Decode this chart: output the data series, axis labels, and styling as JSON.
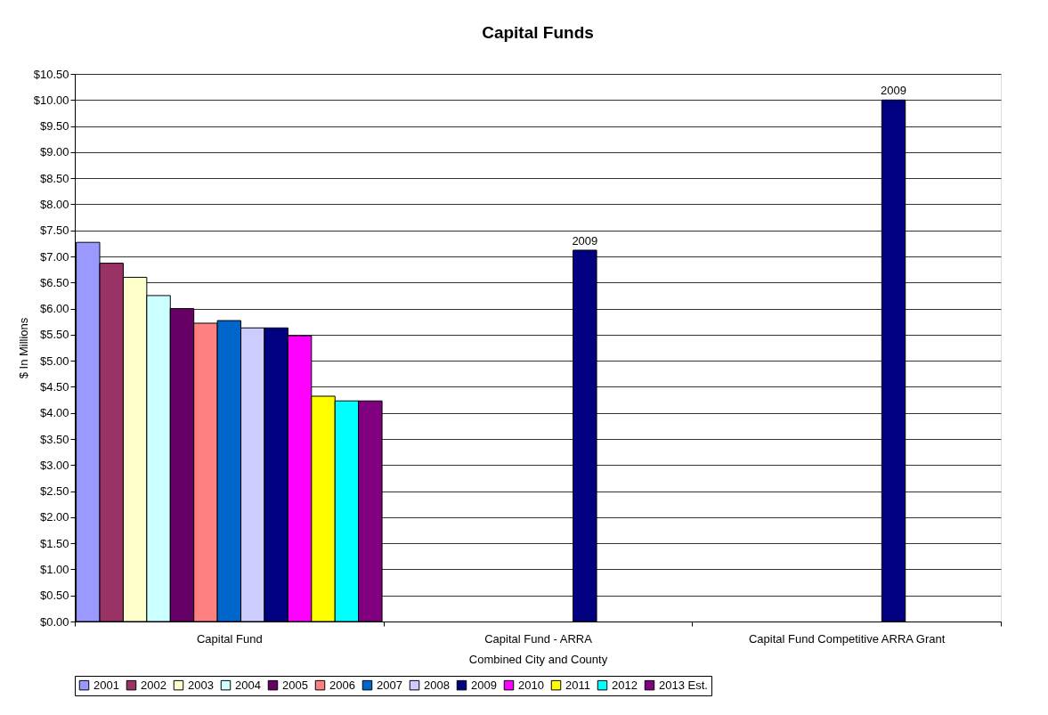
{
  "chart_data": {
    "type": "bar",
    "title": "Capital Funds",
    "xlabel": "Combined City and County",
    "ylabel": "$ In Millions",
    "categories": [
      "Capital Fund",
      "Capital Fund - ARRA",
      "Capital Fund Competitive ARRA Grant"
    ],
    "series": [
      {
        "name": "2001",
        "color": "#9999ff",
        "values": [
          7.27,
          null,
          null
        ]
      },
      {
        "name": "2002",
        "color": "#993366",
        "values": [
          6.87,
          null,
          null
        ]
      },
      {
        "name": "2003",
        "color": "#ffffcc",
        "values": [
          6.6,
          null,
          null
        ]
      },
      {
        "name": "2004",
        "color": "#ccffff",
        "values": [
          6.25,
          null,
          null
        ]
      },
      {
        "name": "2005",
        "color": "#660066",
        "values": [
          6.0,
          null,
          null
        ]
      },
      {
        "name": "2006",
        "color": "#ff8080",
        "values": [
          5.72,
          null,
          null
        ]
      },
      {
        "name": "2007",
        "color": "#0066cc",
        "values": [
          5.77,
          null,
          null
        ]
      },
      {
        "name": "2008",
        "color": "#ccccff",
        "values": [
          5.63,
          null,
          null
        ]
      },
      {
        "name": "2009",
        "color": "#000080",
        "values": [
          5.63,
          7.12,
          10.0
        ]
      },
      {
        "name": "2010",
        "color": "#ff00ff",
        "values": [
          5.48,
          null,
          null
        ]
      },
      {
        "name": "2011",
        "color": "#ffff00",
        "values": [
          4.32,
          null,
          null
        ]
      },
      {
        "name": "2012",
        "color": "#00ffff",
        "values": [
          4.23,
          null,
          null
        ]
      },
      {
        "name": "2013 Est.",
        "color": "#800080",
        "values": [
          4.23,
          null,
          null
        ]
      }
    ],
    "ylim": [
      0,
      10.5
    ],
    "yticks": [
      {
        "value": 0,
        "label": "$0.00"
      },
      {
        "value": 0.5,
        "label": "$0.50"
      },
      {
        "value": 1,
        "label": "$1.00"
      },
      {
        "value": 1.5,
        "label": "$1.50"
      },
      {
        "value": 2,
        "label": "$2.00"
      },
      {
        "value": 2.5,
        "label": "$2.50"
      },
      {
        "value": 3,
        "label": "$3.00"
      },
      {
        "value": 3.5,
        "label": "$3.50"
      },
      {
        "value": 4,
        "label": "$4.00"
      },
      {
        "value": 4.5,
        "label": "$4.50"
      },
      {
        "value": 5,
        "label": "$5.00"
      },
      {
        "value": 5.5,
        "label": "$5.50"
      },
      {
        "value": 6,
        "label": "$6.00"
      },
      {
        "value": 6.5,
        "label": "$6.50"
      },
      {
        "value": 7,
        "label": "$7.00"
      },
      {
        "value": 7.5,
        "label": "$7.50"
      },
      {
        "value": 8,
        "label": "$8.00"
      },
      {
        "value": 8.5,
        "label": "$8.50"
      },
      {
        "value": 9,
        "label": "$9.00"
      },
      {
        "value": 9.5,
        "label": "$9.50"
      },
      {
        "value": 10,
        "label": "$10.00"
      },
      {
        "value": 10.5,
        "label": "$10.50"
      }
    ],
    "annotations": [
      "2009",
      "2009"
    ],
    "grid": "y",
    "legend": "bottom"
  }
}
